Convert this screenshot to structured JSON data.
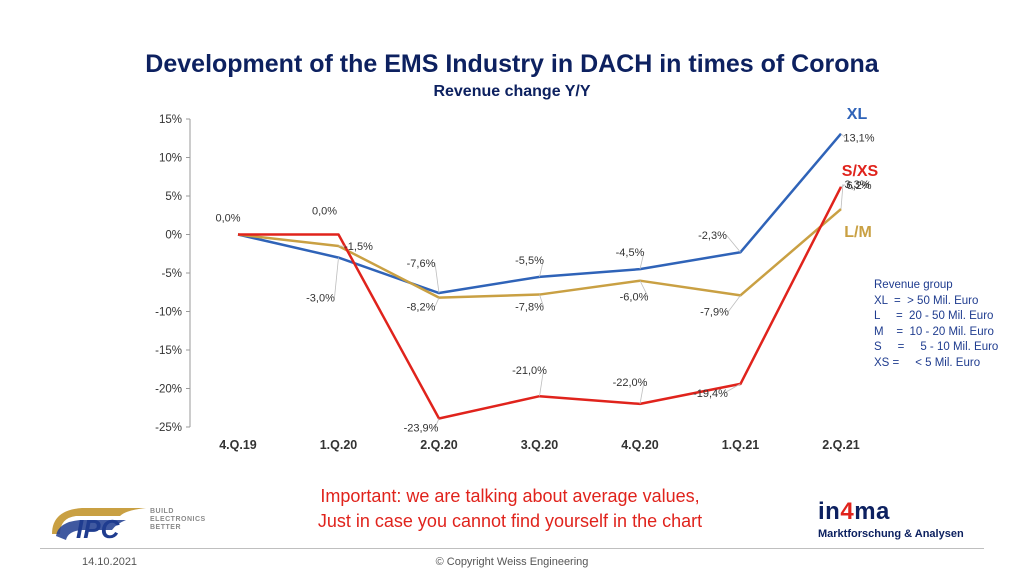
{
  "chart_data": {
    "type": "line",
    "title": "Development of the EMS Industry in DACH in times of Corona",
    "subtitle": "Revenue change Y/Y",
    "categories": [
      "4.Q.19",
      "1.Q.20",
      "2.Q.20",
      "3.Q.20",
      "4.Q.20",
      "1.Q.21",
      "2.Q.21"
    ],
    "yticks": [
      "15%",
      "10%",
      "5%",
      "0%",
      "-5%",
      "-10%",
      "-15%",
      "-20%",
      "-25%"
    ],
    "ylim": [
      -25,
      15
    ],
    "series": [
      {
        "name": "XL",
        "color": "#2f63b8",
        "values": [
          0.0,
          -3.0,
          -7.6,
          -5.5,
          -4.5,
          -2.3,
          13.1
        ],
        "labels": [
          "",
          "-3,0%",
          "-7,6%",
          "-5,5%",
          "-4,5%",
          "-2,3%",
          "13,1%"
        ]
      },
      {
        "name": "L/M",
        "color": "#c9a043",
        "values": [
          0.0,
          -1.5,
          -8.2,
          -7.8,
          -6.0,
          -7.9,
          3.3
        ],
        "labels": [
          "0,0%",
          "-1,5%",
          "-8,2%",
          "-7,8%",
          "-6,0%",
          "-7,9%",
          "3,3%"
        ]
      },
      {
        "name": "S/XS",
        "color": "#e0231c",
        "values": [
          0.0,
          0.0,
          -23.9,
          -21.0,
          -22.0,
          -19.4,
          6.2
        ],
        "labels": [
          "",
          "0,0%",
          "-23,9%",
          "-21,0%",
          "-22,0%",
          "-19,4%",
          "6,2%"
        ]
      }
    ],
    "grid": false
  },
  "legend": {
    "title": "Revenue group",
    "rows": [
      "XL  =  > 50 Mil. Euro",
      "L     =  20 - 50 Mil. Euro",
      "M    =  10 - 20 Mil. Euro",
      "S     =     5 - 10 Mil. Euro",
      "XS =     < 5 Mil. Euro"
    ]
  },
  "note": {
    "line1": "Important: we are talking about average values,",
    "line2": "Just in case you cannot find yourself in the chart"
  },
  "footer": {
    "date": "14.10.2021",
    "copyright": "© Copyright Weiss Engineering"
  },
  "ipc_logo": {
    "text": "IPC",
    "tagline": [
      "BUILD",
      "ELECTRONICS",
      "BETTER"
    ]
  },
  "in4ma": {
    "brand_pre": "in",
    "brand_num": "4",
    "brand_post": "ma",
    "tagline": "Marktforschung & Analysen"
  }
}
